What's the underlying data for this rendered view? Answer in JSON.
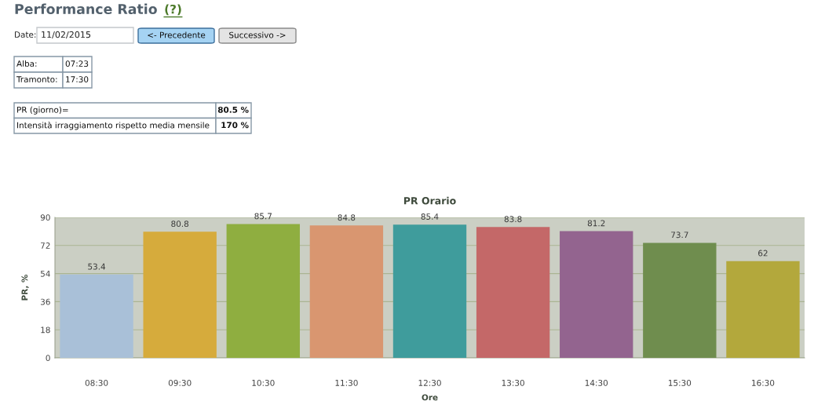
{
  "chart_data": {
    "type": "bar",
    "title": "PR Orario",
    "xlabel": "Ore",
    "ylabel": "PR, %",
    "categories": [
      "08:30",
      "09:30",
      "10:30",
      "11:30",
      "12:30",
      "13:30",
      "14:30",
      "15:30",
      "16:30"
    ],
    "values": [
      53.4,
      80.8,
      85.7,
      84.8,
      85.4,
      83.8,
      81.2,
      73.7,
      62
    ],
    "colors": [
      "#a9c0d8",
      "#d6ab3c",
      "#8fae40",
      "#d99670",
      "#3f9c9c",
      "#c46868",
      "#93648f",
      "#6f8d4e",
      "#b3a83c"
    ],
    "ylim": [
      0,
      90
    ],
    "yticks": [
      0,
      18,
      36,
      54,
      72,
      90
    ],
    "grid": "y",
    "data_labels": true,
    "annotations": [
      "Performance Ratio",
      "(?)",
      "Date:",
      "11/02/2015",
      "<- Precedente",
      "Successivo ->",
      "Alba:",
      "07:23",
      "Tramonto:",
      "17:30",
      "PR (giorno)=",
      "80.5 %",
      "Intensità irraggiamento rispetto media mensile",
      "170 %"
    ]
  }
}
